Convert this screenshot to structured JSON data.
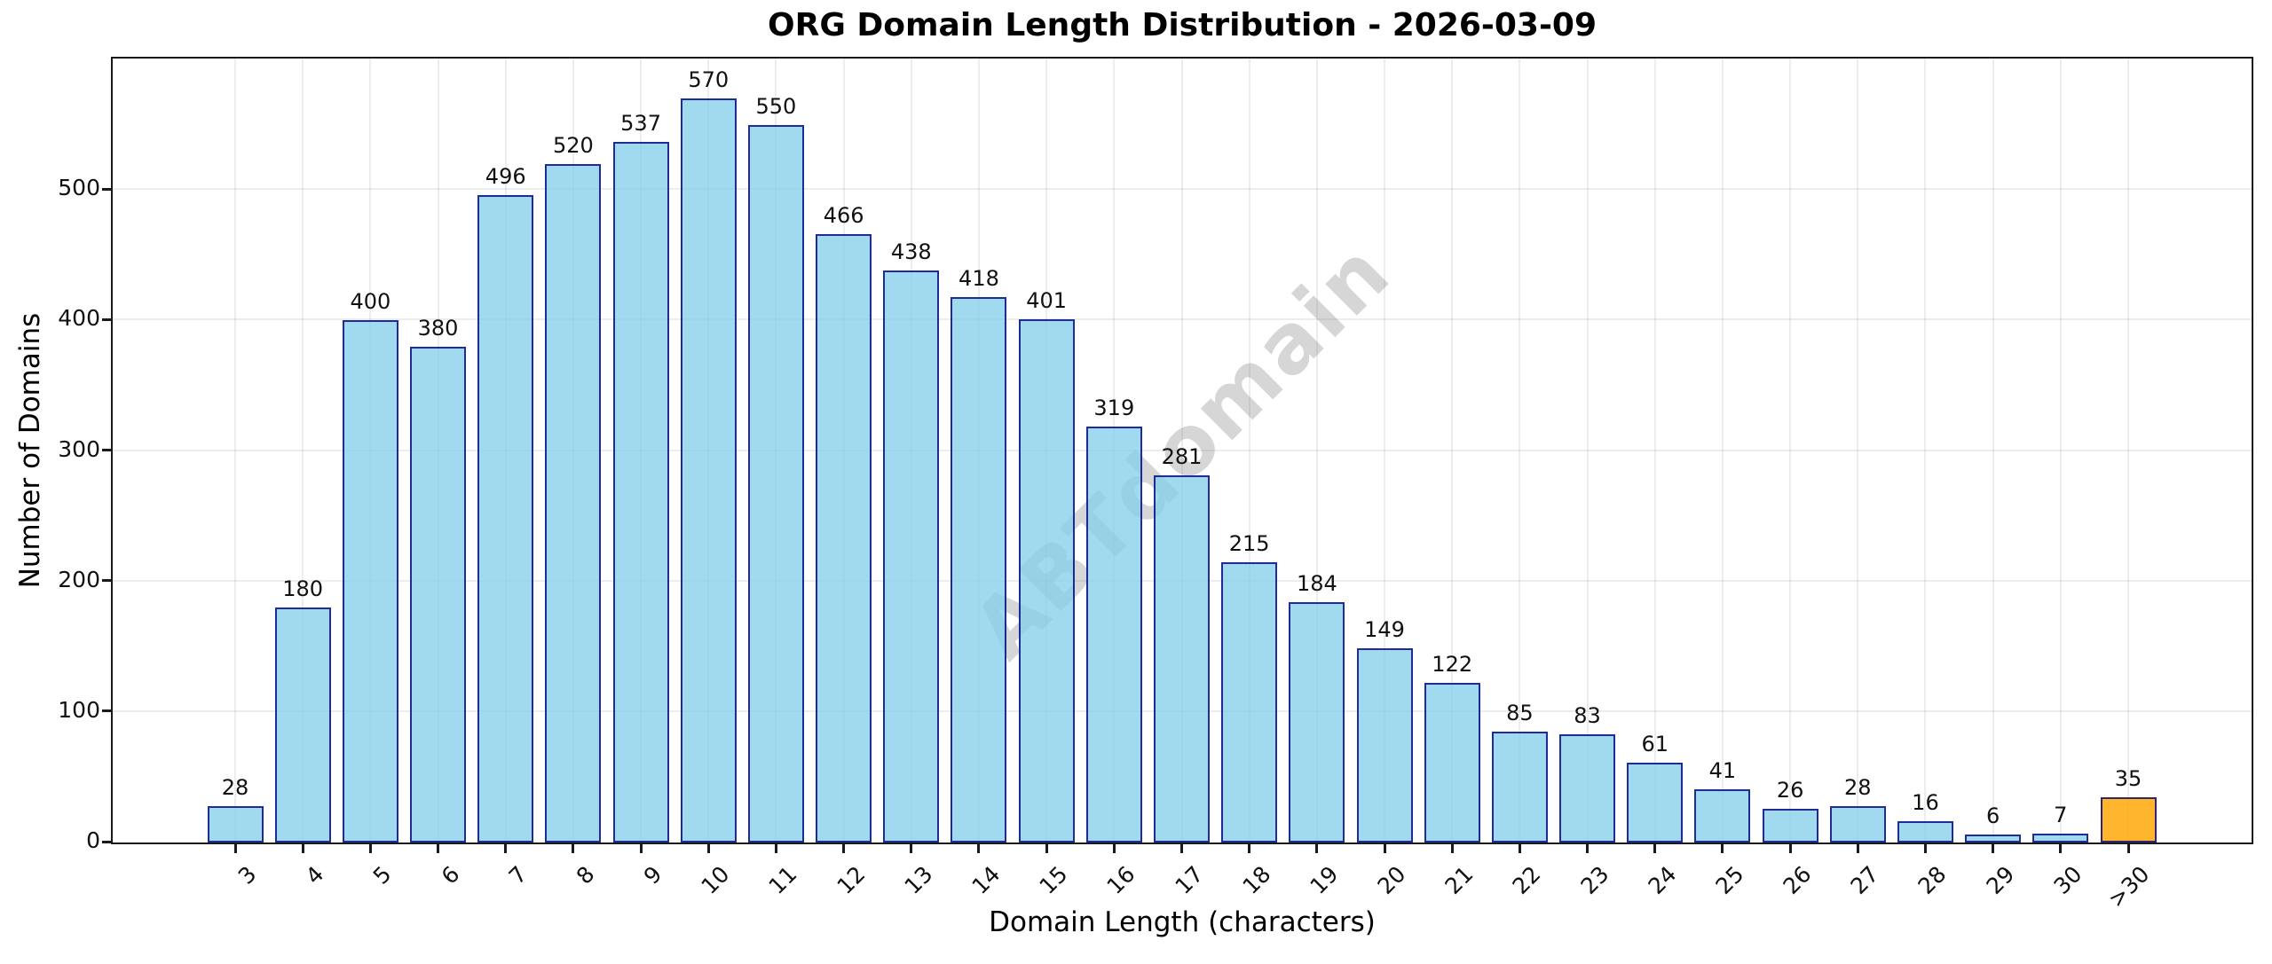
{
  "chart_data": {
    "type": "bar",
    "title": "ORG Domain Length Distribution - 2026-03-09",
    "xlabel": "Domain Length (characters)",
    "ylabel": "Number of Domains",
    "categories": [
      "3",
      "4",
      "5",
      "6",
      "7",
      "8",
      "9",
      "10",
      "11",
      "12",
      "13",
      "14",
      "15",
      "16",
      "17",
      "18",
      "19",
      "20",
      "21",
      "22",
      "23",
      "24",
      "25",
      "26",
      "27",
      "28",
      "29",
      "30",
      ">30"
    ],
    "values": [
      28,
      180,
      400,
      380,
      496,
      520,
      537,
      570,
      550,
      466,
      438,
      418,
      401,
      319,
      281,
      215,
      184,
      149,
      122,
      85,
      83,
      61,
      41,
      26,
      28,
      16,
      6,
      7,
      35
    ],
    "yticks": [
      0,
      100,
      200,
      300,
      400,
      500
    ],
    "ylim": [
      0,
      600
    ],
    "grid": true,
    "legend": "none",
    "watermark": "ABTdomain",
    "colors": {
      "bar_fill": "#87CEEB",
      "bar_fill_alpha": 0.78,
      "bar_edge": "#000080",
      "bar_edge_alpha": 0.8,
      "highlight_fill": "#FFA500",
      "highlight_fill_alpha": 0.82,
      "highlight_index": 28,
      "grid_line": "#e9e9e9",
      "watermark_gray": "#d4d4d4",
      "spine": "#1a1a1a"
    }
  }
}
